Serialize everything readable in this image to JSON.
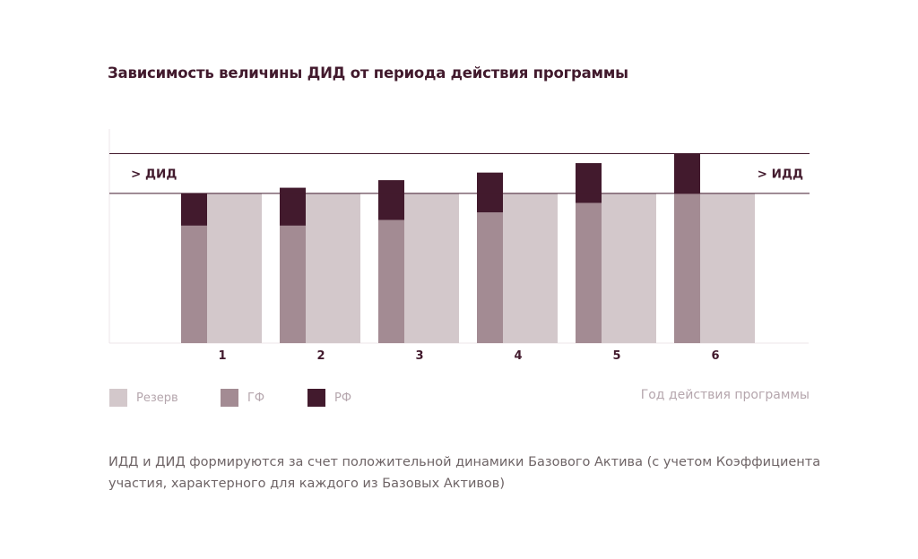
{
  "chart_data": {
    "type": "bar",
    "title": "Зависимость величины ДИД от периода действия программы",
    "xlabel": "Год действия программы",
    "categories": [
      "1",
      "2",
      "3",
      "4",
      "5",
      "6"
    ],
    "series": [
      {
        "name": "ГФ",
        "values": [
          62,
          62,
          65,
          69,
          74,
          79
        ]
      },
      {
        "name": "РФ",
        "values": [
          17,
          20,
          21,
          21,
          21,
          21
        ]
      },
      {
        "name": "Резерв",
        "values": [
          79,
          79,
          79,
          79,
          79,
          79
        ]
      }
    ],
    "reference_lines": [
      {
        "label": "> ДИД",
        "value": 79,
        "side": "left"
      },
      {
        "label": "> ИДД",
        "value": 100,
        "side": "right"
      }
    ],
    "ylim": [
      0,
      113
    ],
    "grid": false,
    "legend_placement": "bottom-left",
    "colors": {
      "ГФ": "#a38b93",
      "РФ": "#421a2d",
      "Резерв": "#d3c8cb",
      "line": "#421a2d"
    }
  },
  "legend": [
    {
      "label": "Резерв",
      "color": "#d3c8cb"
    },
    {
      "label": "ГФ",
      "color": "#a38b93"
    },
    {
      "label": "РФ",
      "color": "#421a2d"
    }
  ],
  "footnote": [
    "ИДД и ДИД формируются за счет положительной динамики Базового Актива (с учетом Коэффициента",
    "участия, характерного для каждого из Базовых Активов)"
  ]
}
